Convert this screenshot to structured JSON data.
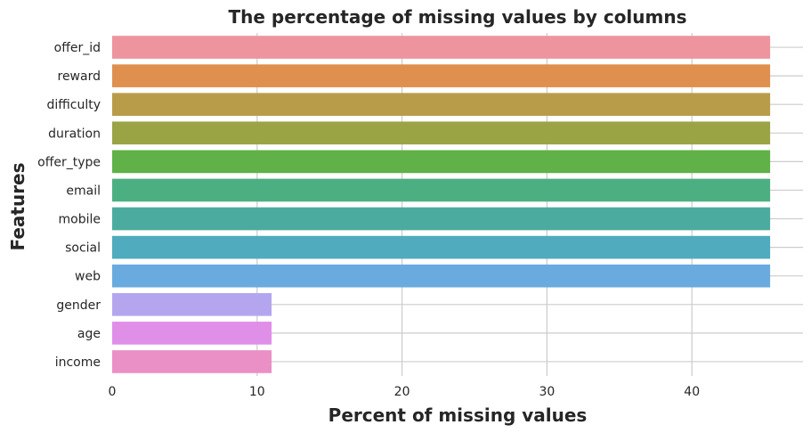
{
  "chart_data": {
    "type": "bar",
    "orientation": "horizontal",
    "title": "The percentage of missing values by columns",
    "xlabel": "Percent of missing values",
    "ylabel": "Features",
    "xlim": [
      0,
      48
    ],
    "xticks": [
      0,
      10,
      20,
      30,
      40
    ],
    "grid": true,
    "categories": [
      "offer_id",
      "reward",
      "difficulty",
      "duration",
      "offer_type",
      "email",
      "mobile",
      "social",
      "web",
      "gender",
      "age",
      "income"
    ],
    "values": [
      45.4,
      45.4,
      45.4,
      45.4,
      45.4,
      45.4,
      45.4,
      45.4,
      45.4,
      11.0,
      11.0,
      11.0
    ],
    "colors": [
      "#ed949f",
      "#df904f",
      "#b89c49",
      "#9aa445",
      "#60b148",
      "#4caf82",
      "#4cab9f",
      "#4fabbd",
      "#69abde",
      "#b4a6ee",
      "#e08fe9",
      "#ea90c6"
    ]
  }
}
